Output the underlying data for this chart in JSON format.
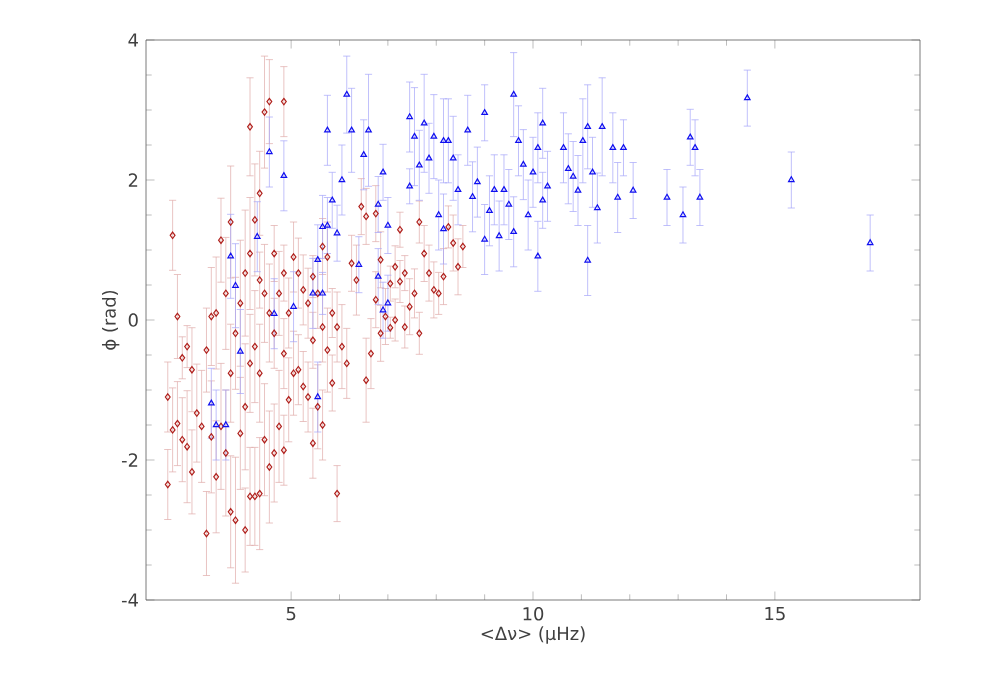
{
  "chart_data": {
    "type": "scatter",
    "xlabel": "<Δν> (μHz)",
    "ylabel": "ϕ (rad)",
    "xlim": [
      2,
      18
    ],
    "ylim": [
      -4,
      4
    ],
    "xticks": [
      5,
      10,
      15
    ],
    "yticks": [
      -4,
      -2,
      0,
      2,
      4
    ],
    "grid": false,
    "series": [
      {
        "color": "#b0201c",
        "marker": "diamond",
        "x": [
          2.45,
          2.45,
          2.55,
          2.55,
          2.65,
          2.65,
          2.75,
          2.75,
          2.85,
          2.85,
          2.95,
          2.95,
          3.05,
          3.15,
          3.25,
          3.25,
          3.35,
          3.35,
          3.45,
          3.45,
          3.55,
          3.55,
          3.65,
          3.65,
          3.75,
          3.75,
          3.75,
          3.85,
          3.85,
          3.95,
          3.95,
          4.05,
          4.05,
          4.05,
          4.15,
          4.15,
          4.15,
          4.15,
          4.25,
          4.25,
          4.25,
          4.35,
          4.35,
          4.35,
          4.35,
          4.45,
          4.45,
          4.45,
          4.55,
          4.55,
          4.55,
          4.65,
          4.65,
          4.65,
          4.75,
          4.75,
          4.85,
          4.85,
          4.85,
          4.85,
          4.95,
          4.95,
          5.05,
          5.05,
          5.15,
          5.15,
          5.25,
          5.25,
          5.35,
          5.35,
          5.45,
          5.45,
          5.45,
          5.55,
          5.55,
          5.65,
          5.65,
          5.65,
          5.75,
          5.75,
          5.85,
          5.85,
          5.95,
          5.95,
          6.05,
          6.15,
          6.25,
          6.35,
          6.45,
          6.55,
          6.55,
          6.65,
          6.75,
          6.75,
          6.85,
          6.85,
          6.95,
          7.05,
          7.05,
          7.15,
          7.15,
          7.25,
          7.25,
          7.35,
          7.35,
          7.45,
          7.65,
          7.55,
          7.75,
          7.85,
          7.65,
          7.95,
          8.05,
          8.15,
          8.25,
          8.35,
          8.45,
          8.55
        ],
        "values": [
          -2.35,
          -1.1,
          -1.57,
          1.21,
          -1.48,
          0.05,
          -1.71,
          -0.54,
          -1.81,
          -0.38,
          -2.17,
          -0.71,
          -1.33,
          -1.52,
          -0.43,
          -3.05,
          0.05,
          -1.67,
          0.1,
          -2.24,
          1.14,
          -1.52,
          0.38,
          -1.9,
          -0.76,
          -2.74,
          1.4,
          -0.19,
          -2.86,
          0.24,
          -1.62,
          0.67,
          -1.24,
          -3.0,
          0.95,
          -0.62,
          -2.52,
          2.76,
          1.43,
          -0.38,
          -2.52,
          1.81,
          0.57,
          -0.76,
          -2.48,
          0.38,
          -1.71,
          2.97,
          0.1,
          -2.1,
          3.12,
          -0.19,
          -1.9,
          0.95,
          0.38,
          -1.52,
          -0.48,
          0.67,
          -1.86,
          3.12,
          0.1,
          -1.14,
          0.9,
          -0.76,
          0.67,
          -0.71,
          0.43,
          -0.95,
          0.24,
          -1.1,
          -0.29,
          -1.76,
          0.62,
          0.38,
          -1.24,
          1.05,
          -1.5,
          -0.1,
          -0.43,
          0.9,
          0.1,
          -0.9,
          -0.1,
          -2.48,
          -0.38,
          -0.62,
          0.81,
          0.57,
          1.62,
          1.48,
          -0.86,
          -0.48,
          1.52,
          0.29,
          -0.19,
          0.86,
          0.05,
          0.52,
          -0.11,
          0.0,
          0.76,
          0.55,
          1.29,
          -0.1,
          0.67,
          0.19,
          -0.19,
          0.38,
          0.95,
          0.67,
          1.4,
          0.43,
          0.38,
          0.62,
          1.33,
          1.1,
          0.76,
          1.05
        ],
        "errors": [
          0.5,
          0.5,
          0.6,
          0.5,
          0.6,
          0.6,
          0.6,
          0.3,
          0.8,
          0.3,
          0.6,
          0.6,
          0.7,
          0.8,
          0.6,
          0.6,
          0.7,
          0.8,
          0.8,
          0.8,
          0.6,
          0.9,
          0.8,
          0.9,
          0.7,
          0.8,
          0.8,
          0.8,
          0.9,
          0.9,
          0.8,
          0.9,
          0.9,
          0.6,
          0.8,
          0.7,
          0.7,
          0.7,
          0.8,
          0.8,
          0.7,
          0.6,
          0.4,
          0.7,
          0.8,
          0.7,
          0.8,
          0.8,
          0.7,
          0.8,
          0.6,
          0.5,
          0.7,
          0.4,
          0.6,
          0.8,
          0.5,
          0.4,
          0.5,
          0.5,
          0.5,
          0.6,
          0.5,
          0.6,
          0.5,
          0.5,
          0.5,
          0.5,
          0.5,
          0.5,
          0.4,
          0.5,
          0.3,
          0.5,
          0.6,
          0.4,
          0.5,
          0.5,
          0.6,
          0.5,
          0.35,
          0.4,
          0.5,
          0.4,
          0.6,
          0.5,
          0.4,
          0.5,
          0.4,
          0.4,
          0.6,
          0.5,
          0.4,
          0.4,
          0.4,
          0.4,
          0.4,
          0.25,
          0.15,
          0.3,
          0.3,
          0.3,
          0.25,
          0.3,
          0.25,
          0.4,
          0.3,
          0.35,
          0.4,
          0.4,
          0.3,
          0.4,
          0.3,
          0.4,
          0.3,
          0.4,
          0.4,
          0.3
        ]
      },
      {
        "color": "#1010f0",
        "marker": "triangle",
        "x": [
          3.35,
          3.45,
          3.65,
          3.75,
          3.85,
          3.95,
          4.3,
          4.55,
          4.65,
          4.85,
          5.05,
          5.45,
          5.55,
          5.55,
          5.65,
          5.65,
          5.75,
          5.75,
          5.85,
          5.95,
          6.05,
          6.15,
          6.25,
          6.4,
          6.5,
          6.6,
          6.8,
          6.8,
          6.9,
          6.9,
          7.0,
          7.0,
          7.45,
          7.45,
          7.55,
          7.65,
          7.75,
          7.85,
          7.95,
          8.05,
          8.15,
          8.15,
          8.25,
          8.35,
          8.45,
          8.65,
          8.75,
          8.85,
          9.0,
          9.0,
          9.1,
          9.2,
          9.3,
          9.4,
          9.5,
          9.6,
          9.6,
          9.7,
          9.8,
          9.9,
          10.0,
          10.1,
          10.1,
          10.2,
          10.2,
          10.3,
          10.63,
          10.73,
          10.83,
          10.93,
          11.03,
          11.13,
          11.13,
          11.23,
          11.33,
          11.43,
          11.65,
          11.75,
          11.87,
          12.07,
          12.77,
          13.1,
          13.25,
          13.35,
          13.45,
          14.43,
          15.34,
          16.97
        ],
        "values": [
          -1.19,
          -1.5,
          -1.5,
          0.91,
          0.49,
          -0.45,
          1.19,
          2.4,
          0.09,
          2.06,
          0.19,
          0.38,
          0.86,
          -1.1,
          1.33,
          0.38,
          1.35,
          2.71,
          1.71,
          1.24,
          2.0,
          3.22,
          2.71,
          0.79,
          2.36,
          2.71,
          0.62,
          1.65,
          2.11,
          0.14,
          1.35,
          0.24,
          2.9,
          1.91,
          2.62,
          2.21,
          2.81,
          2.31,
          2.62,
          1.5,
          2.56,
          1.3,
          2.56,
          2.31,
          1.86,
          2.71,
          1.76,
          1.97,
          1.15,
          2.96,
          1.56,
          1.86,
          1.2,
          1.86,
          1.65,
          1.26,
          3.22,
          2.56,
          2.22,
          1.5,
          2.11,
          2.46,
          0.91,
          2.81,
          1.71,
          1.91,
          2.46,
          2.16,
          2.05,
          1.85,
          2.56,
          2.76,
          0.85,
          2.11,
          1.6,
          2.76,
          2.46,
          1.75,
          2.46,
          1.85,
          1.75,
          1.5,
          2.61,
          2.46,
          1.75,
          3.17,
          2.0,
          1.1
        ],
        "errors": [
          0.5,
          0.5,
          0.5,
          0.6,
          0.6,
          0.6,
          0.5,
          0.5,
          0.5,
          0.5,
          0.5,
          0.5,
          0.5,
          0.5,
          0.45,
          0.3,
          0.4,
          0.5,
          0.4,
          0.4,
          0.5,
          0.55,
          0.6,
          0.4,
          0.5,
          0.8,
          0.4,
          0.4,
          0.4,
          0.4,
          0.4,
          0.4,
          0.5,
          0.25,
          0.7,
          0.5,
          0.7,
          0.5,
          0.6,
          0.5,
          0.6,
          0.5,
          0.6,
          0.6,
          0.5,
          0.5,
          0.5,
          0.5,
          0.5,
          0.4,
          0.5,
          0.5,
          0.5,
          0.5,
          0.5,
          0.5,
          0.6,
          0.5,
          0.5,
          0.5,
          0.5,
          0.5,
          0.5,
          0.5,
          0.4,
          0.5,
          0.5,
          0.5,
          0.5,
          0.5,
          0.6,
          0.6,
          0.5,
          0.5,
          0.5,
          0.7,
          0.5,
          0.5,
          0.4,
          0.4,
          0.4,
          0.4,
          0.4,
          0.4,
          0.4,
          0.4,
          0.4,
          0.4
        ]
      }
    ]
  }
}
